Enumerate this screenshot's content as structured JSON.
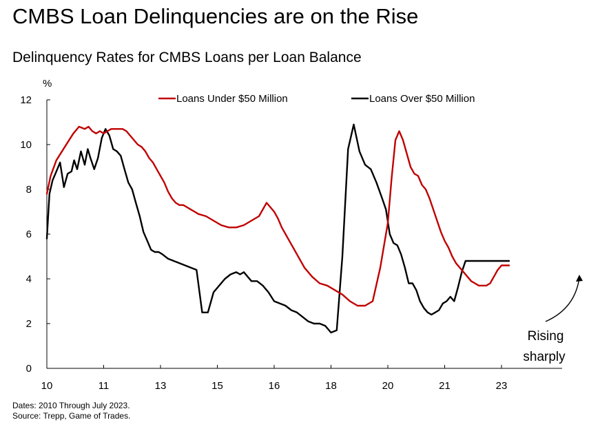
{
  "chart_data": {
    "type": "line",
    "title": "CMBS Loan Delinquencies are on the Rise",
    "subtitle": "Delinquency Rates for CMBS Loans per Loan Balance",
    "ylabel": "%",
    "xlabel": "",
    "ylim": [
      0,
      12
    ],
    "yticks": [
      "0",
      "2",
      "4",
      "6",
      "8",
      "10",
      "12"
    ],
    "xlim": [
      2010.0,
      2023.6
    ],
    "xticks": [
      {
        "x": 2010.0,
        "label": "10"
      },
      {
        "x": 2011.5,
        "label": "11"
      },
      {
        "x": 2013.0,
        "label": "13"
      },
      {
        "x": 2014.5,
        "label": "15"
      },
      {
        "x": 2016.0,
        "label": "16"
      },
      {
        "x": 2017.5,
        "label": "18"
      },
      {
        "x": 2019.0,
        "label": "20"
      },
      {
        "x": 2020.5,
        "label": "21"
      },
      {
        "x": 2022.0,
        "label": "23"
      }
    ],
    "grid": false,
    "legend_position": "top",
    "series": [
      {
        "name": "Loans Under $50 Million",
        "color": "#c00000",
        "x": [
          2010.0,
          2010.1,
          2010.25,
          2010.4,
          2010.55,
          2010.7,
          2010.85,
          2011.0,
          2011.1,
          2011.2,
          2011.3,
          2011.4,
          2011.5,
          2011.6,
          2011.7,
          2011.8,
          2011.9,
          2012.0,
          2012.1,
          2012.2,
          2012.3,
          2012.4,
          2012.5,
          2012.6,
          2012.7,
          2012.8,
          2012.9,
          2013.0,
          2013.1,
          2013.2,
          2013.3,
          2013.4,
          2013.5,
          2013.6,
          2013.7,
          2013.8,
          2013.9,
          2014.0,
          2014.2,
          2014.4,
          2014.6,
          2014.8,
          2015.0,
          2015.2,
          2015.4,
          2015.6,
          2015.8,
          2016.0,
          2016.1,
          2016.2,
          2016.3,
          2016.4,
          2016.5,
          2016.6,
          2016.7,
          2016.8,
          2017.0,
          2017.2,
          2017.4,
          2017.6,
          2017.8,
          2018.0,
          2018.2,
          2018.4,
          2018.6,
          2018.8,
          2019.0,
          2019.1,
          2019.2,
          2019.3,
          2019.4,
          2019.5,
          2019.6,
          2019.7,
          2019.8,
          2019.9,
          2020.0,
          2020.1,
          2020.2,
          2020.3,
          2020.4,
          2020.5,
          2020.6,
          2020.7,
          2020.8,
          2020.9,
          2021.0,
          2021.1,
          2021.2,
          2021.3,
          2021.4,
          2021.5,
          2021.6,
          2021.7,
          2021.8,
          2021.9,
          2022.0,
          2022.1,
          2022.2
        ],
        "values": [
          7.8,
          8.6,
          9.3,
          9.7,
          10.1,
          10.5,
          10.8,
          10.7,
          10.8,
          10.6,
          10.5,
          10.6,
          10.5,
          10.6,
          10.7,
          10.7,
          10.7,
          10.7,
          10.6,
          10.4,
          10.2,
          10.0,
          9.9,
          9.7,
          9.4,
          9.2,
          8.9,
          8.6,
          8.3,
          7.9,
          7.6,
          7.4,
          7.3,
          7.3,
          7.2,
          7.1,
          7.0,
          6.9,
          6.8,
          6.6,
          6.4,
          6.3,
          6.3,
          6.4,
          6.6,
          6.8,
          7.4,
          7.0,
          6.7,
          6.3,
          6.0,
          5.7,
          5.4,
          5.1,
          4.8,
          4.5,
          4.1,
          3.8,
          3.7,
          3.5,
          3.3,
          3.0,
          2.8,
          2.8,
          3.0,
          4.5,
          6.5,
          8.5,
          10.2,
          10.6,
          10.2,
          9.6,
          9.0,
          8.7,
          8.6,
          8.2,
          8.0,
          7.6,
          7.1,
          6.6,
          6.1,
          5.7,
          5.4,
          5.0,
          4.7,
          4.5,
          4.3,
          4.1,
          3.9,
          3.8,
          3.7,
          3.7,
          3.7,
          3.8,
          4.1,
          4.4,
          4.6,
          4.6,
          4.6
        ]
      },
      {
        "name": "Loans Over $50 Million",
        "color": "#000000",
        "x": [
          2010.0,
          2010.07,
          2010.15,
          2010.25,
          2010.35,
          2010.45,
          2010.55,
          2010.65,
          2010.72,
          2010.8,
          2010.9,
          2011.0,
          2011.08,
          2011.15,
          2011.25,
          2011.35,
          2011.45,
          2011.55,
          2011.65,
          2011.75,
          2011.85,
          2011.95,
          2012.05,
          2012.15,
          2012.25,
          2012.35,
          2012.45,
          2012.55,
          2012.65,
          2012.75,
          2012.85,
          2012.95,
          2013.05,
          2013.2,
          2013.35,
          2013.5,
          2013.65,
          2013.8,
          2013.95,
          2014.1,
          2014.25,
          2014.4,
          2014.55,
          2014.7,
          2014.85,
          2015.0,
          2015.1,
          2015.2,
          2015.3,
          2015.4,
          2015.55,
          2015.7,
          2015.85,
          2016.0,
          2016.15,
          2016.3,
          2016.45,
          2016.6,
          2016.75,
          2016.9,
          2017.05,
          2017.2,
          2017.35,
          2017.5,
          2017.65,
          2017.8,
          2017.95,
          2018.1,
          2018.25,
          2018.4,
          2018.55,
          2018.7,
          2018.85,
          2018.95,
          2019.05,
          2019.15,
          2019.25,
          2019.35,
          2019.45,
          2019.55,
          2019.65,
          2019.75,
          2019.85,
          2019.95,
          2020.05,
          2020.15,
          2020.25,
          2020.35,
          2020.45,
          2020.55,
          2020.65,
          2020.75,
          2020.85,
          2020.95,
          2021.05,
          2021.15,
          2021.25,
          2021.35,
          2021.45,
          2021.55,
          2021.65,
          2021.75,
          2021.85,
          2021.95,
          2022.05,
          2022.15,
          2022.2
        ],
        "values": [
          5.8,
          7.8,
          8.4,
          8.8,
          9.2,
          8.1,
          8.7,
          8.8,
          9.3,
          8.9,
          9.7,
          9.1,
          9.8,
          9.4,
          8.9,
          9.4,
          10.3,
          10.7,
          10.4,
          9.8,
          9.7,
          9.5,
          8.9,
          8.3,
          8.0,
          7.4,
          6.8,
          6.1,
          5.7,
          5.3,
          5.2,
          5.2,
          5.1,
          4.9,
          4.8,
          4.7,
          4.6,
          4.5,
          4.4,
          2.5,
          2.5,
          3.4,
          3.7,
          4.0,
          4.2,
          4.3,
          4.2,
          4.3,
          4.1,
          3.9,
          3.9,
          3.7,
          3.4,
          3.0,
          2.9,
          2.8,
          2.6,
          2.5,
          2.3,
          2.1,
          2.0,
          2.0,
          1.9,
          1.6,
          1.7,
          5.0,
          9.8,
          10.9,
          9.7,
          9.1,
          8.9,
          8.3,
          7.6,
          7.1,
          6.0,
          5.6,
          5.5,
          5.1,
          4.5,
          3.8,
          3.8,
          3.5,
          3.0,
          2.7,
          2.5,
          2.4,
          2.5,
          2.6,
          2.9,
          3.0,
          3.2,
          3.0,
          3.6,
          4.3,
          4.8,
          4.8,
          4.8,
          4.8,
          4.8,
          4.8,
          4.8,
          4.8,
          4.8,
          4.8,
          4.8,
          4.8,
          4.8
        ]
      }
    ],
    "annotations": [
      {
        "text_lines": [
          "Rising",
          "sharply"
        ],
        "arrow": "curved pointing up-right toward latest values"
      }
    ]
  },
  "footnotes": {
    "dates": "Dates: 2010 Through July 2023.",
    "source": "Source: Trepp, Game of Trades."
  }
}
